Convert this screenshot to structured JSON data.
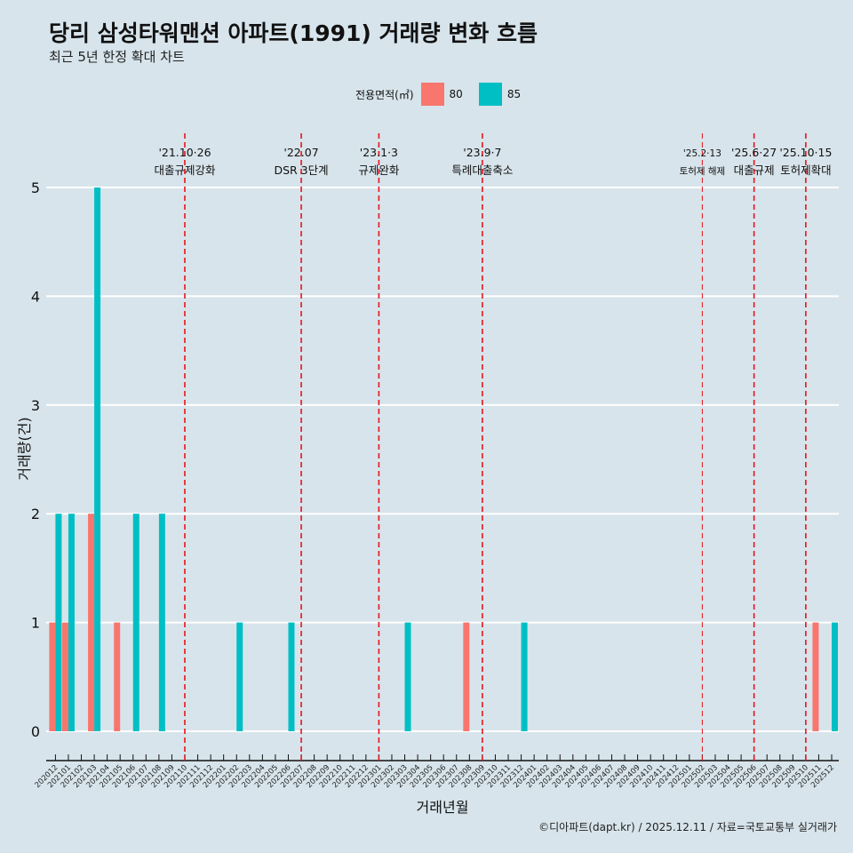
{
  "title": "당리 삼성타워맨션 아파트(1991) 거래량 변화 흐름",
  "subtitle": "최근 5년 한정 확대 차트",
  "caption": "©디아파트(dapt.kr) / 2025.12.11 / 자료=국토교통부 실거래가",
  "legend": {
    "title": "전용면적(㎡)",
    "items": [
      {
        "label": "80",
        "color": "#F8766D"
      },
      {
        "label": "85",
        "color": "#00BFC4"
      }
    ]
  },
  "chart_data": {
    "type": "bar",
    "title": "당리 삼성타워맨션 아파트(1991) 거래량 변화 흐름",
    "xlabel": "거래년월",
    "ylabel": "거래량(건)",
    "ylim": [
      0,
      5
    ],
    "yticks": [
      "0",
      "1",
      "2",
      "3",
      "4",
      "5"
    ],
    "categories": [
      "202012",
      "202101",
      "202102",
      "202103",
      "202104",
      "202105",
      "202106",
      "202107",
      "202108",
      "202109",
      "202110",
      "202111",
      "202112",
      "202201",
      "202202",
      "202203",
      "202204",
      "202205",
      "202206",
      "202207",
      "202208",
      "202209",
      "202210",
      "202211",
      "202212",
      "202301",
      "202302",
      "202303",
      "202304",
      "202305",
      "202306",
      "202307",
      "202308",
      "202309",
      "202310",
      "202311",
      "202312",
      "202401",
      "202402",
      "202403",
      "202404",
      "202405",
      "202406",
      "202407",
      "202408",
      "202409",
      "202410",
      "202411",
      "202412",
      "202501",
      "202502",
      "202503",
      "202504",
      "202505",
      "202506",
      "202507",
      "202508",
      "202509",
      "202510",
      "202511",
      "202512"
    ],
    "series": [
      {
        "name": "80",
        "color": "#F8766D",
        "values": {
          "202012": 1,
          "202101": 1,
          "202103": 2,
          "202105": 1,
          "202308": 1,
          "202511": 1
        }
      },
      {
        "name": "85",
        "color": "#00BFC4",
        "values": {
          "202012": 2,
          "202101": 2,
          "202103": 5,
          "202106": 2,
          "202108": 2,
          "202202": 1,
          "202206": 1,
          "202303": 1,
          "202312": 1,
          "202512": 1
        }
      }
    ],
    "annotations": [
      {
        "month": "202110",
        "date": "'21.10·26",
        "label": "대출규제강화"
      },
      {
        "month": "202207",
        "date": "'22.07",
        "label": "DSR 3단계"
      },
      {
        "month": "202301",
        "date": "'23.1·3",
        "label": "규제완화"
      },
      {
        "month": "202309",
        "date": "'23.9·7",
        "label": "특례대출축소"
      },
      {
        "month": "202502",
        "date": "'25.2·13",
        "label": "토허제 해제",
        "small": true
      },
      {
        "month": "202506",
        "date": "'25.6·27",
        "label": "대출규제"
      },
      {
        "month": "202510",
        "date": "'25.10·15",
        "label": "토허제확대"
      }
    ],
    "grid": true,
    "legend_position": "top"
  }
}
